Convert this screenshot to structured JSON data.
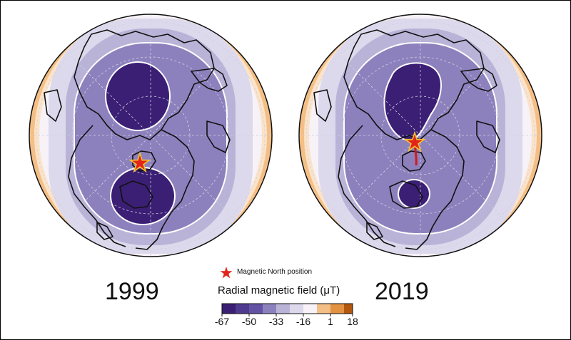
{
  "years": {
    "left": "1999",
    "right": "2019"
  },
  "legend": {
    "star_label": "Magnetic North position",
    "scale_title": "Radial magnetic field (μT)",
    "ticks": [
      "-67",
      "-50",
      "-33",
      "-16",
      "1",
      "18"
    ]
  },
  "colors": {
    "band_0": "#3b1f74",
    "band_1": "#6452a4",
    "band_2": "#8d81bd",
    "band_3": "#b9b3d8",
    "band_4": "#ddd9ec",
    "band_5": "#f6f2f7",
    "band_6": "#fbe3c9",
    "band_7": "#f4bf86",
    "band_8": "#e39241",
    "band_9": "#b2570c",
    "star": "#e3241b",
    "star_outline": "#f2c230",
    "path": "#d11a1a"
  }
}
